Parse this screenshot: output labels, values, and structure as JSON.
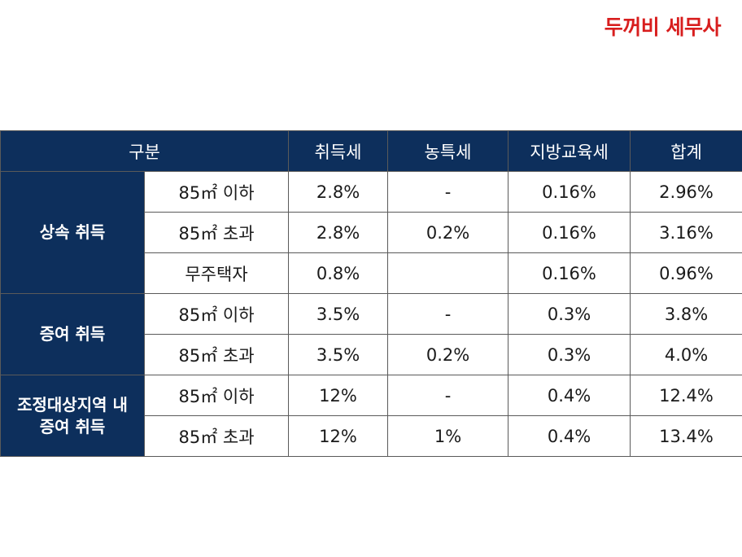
{
  "brand": "두꺼비 세무사",
  "headers": {
    "category": "구분",
    "acq_tax": "취득세",
    "rural_tax": "농특세",
    "edu_tax": "지방교육세",
    "total": "합계"
  },
  "groups": [
    {
      "label_lines": [
        "상속 취득"
      ],
      "rows": [
        {
          "sub": "85㎡ 이하",
          "acq": "2.8%",
          "rural": "-",
          "edu": "0.16%",
          "total": "2.96%"
        },
        {
          "sub": "85㎡ 초과",
          "acq": "2.8%",
          "rural": "0.2%",
          "edu": "0.16%",
          "total": "3.16%"
        },
        {
          "sub": "무주택자",
          "acq": "0.8%",
          "rural": "",
          "edu": "0.16%",
          "total": "0.96%"
        }
      ]
    },
    {
      "label_lines": [
        "증여 취득"
      ],
      "rows": [
        {
          "sub": "85㎡ 이하",
          "acq": "3.5%",
          "rural": "-",
          "edu": "0.3%",
          "total": "3.8%"
        },
        {
          "sub": "85㎡ 초과",
          "acq": "3.5%",
          "rural": "0.2%",
          "edu": "0.3%",
          "total": "4.0%"
        }
      ]
    },
    {
      "label_lines": [
        "조정대상지역 내",
        "증여 취득"
      ],
      "rows": [
        {
          "sub": "85㎡ 이하",
          "acq": "12%",
          "rural": "-",
          "edu": "0.4%",
          "total": "12.4%"
        },
        {
          "sub": "85㎡ 초과",
          "acq": "12%",
          "rural": "1%",
          "edu": "0.4%",
          "total": "13.4%"
        }
      ]
    }
  ]
}
